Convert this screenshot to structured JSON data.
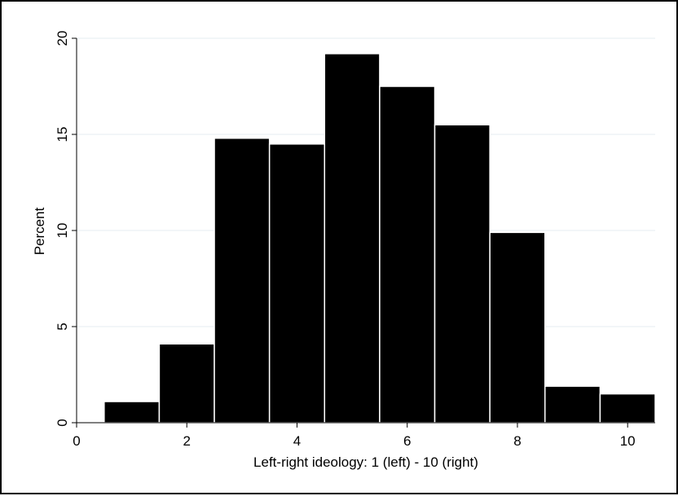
{
  "chart_data": {
    "type": "bar",
    "title": "",
    "xlabel": "Left-right ideology: 1 (left) - 10 (right)",
    "ylabel": "Percent",
    "x": [
      1,
      2,
      3,
      4,
      5,
      6,
      7,
      8,
      9,
      10
    ],
    "values": [
      1.1,
      4.1,
      14.8,
      14.5,
      19.2,
      17.5,
      15.5,
      9.9,
      1.9,
      1.5
    ],
    "bin_width": 1,
    "xlim": [
      0,
      10.5
    ],
    "ylim": [
      0,
      20
    ],
    "xticks": [
      0,
      2,
      4,
      6,
      8,
      10
    ],
    "yticks": [
      0,
      5,
      10,
      15,
      20
    ],
    "grid": "horizontal",
    "colors": {
      "bar_fill": "#000000",
      "bar_edge": "#ffffff",
      "grid": "#e6eef2",
      "axis": "#000000"
    }
  }
}
